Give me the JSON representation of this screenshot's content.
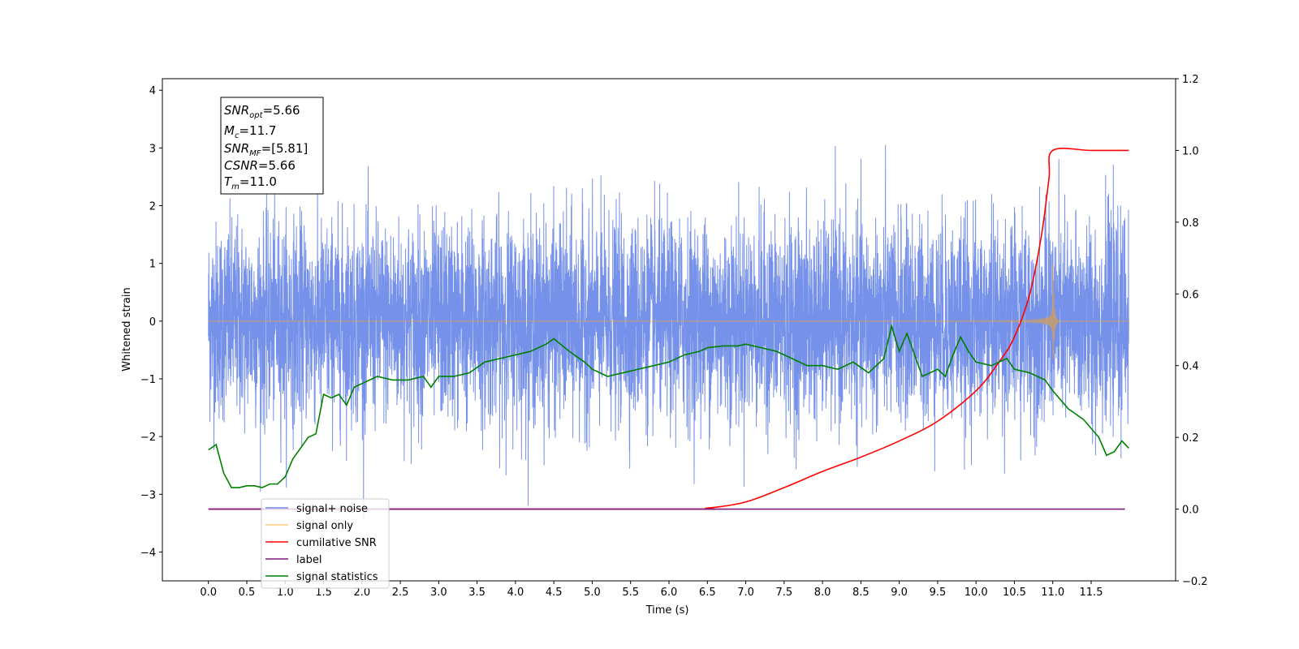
{
  "chart_data": {
    "type": "line",
    "title": "",
    "xlabel": "Time (s)",
    "ylabel": "Whitened strain",
    "xlim": [
      -0.6,
      12.6
    ],
    "ylim": [
      -4.5,
      4.2
    ],
    "y2lim": [
      -0.2,
      1.2
    ],
    "xticks": [
      "0.0",
      "0.5",
      "1.0",
      "1.5",
      "2.0",
      "2.5",
      "3.0",
      "3.5",
      "4.0",
      "4.5",
      "5.0",
      "5.5",
      "6.0",
      "6.5",
      "7.0",
      "7.5",
      "8.0",
      "8.5",
      "9.0",
      "9.5",
      "10.0",
      "10.5",
      "11.0",
      "11.5"
    ],
    "yticks": [
      "4",
      "3",
      "2",
      "1",
      "0",
      "−1",
      "−2",
      "−3",
      "−4"
    ],
    "y2ticks": [
      "1.2",
      "1.0",
      "0.8",
      "0.6",
      "0.4",
      "0.2",
      "0.0",
      "−0.2"
    ],
    "grid": false,
    "legend_position": "lower-left",
    "annotation": {
      "snr_opt": {
        "base": "SNR",
        "sub": "opt",
        "value": "=5.66"
      },
      "mc": {
        "base": "M",
        "sub": "c",
        "value": "=11.7"
      },
      "snr_mf": {
        "base": "SNR",
        "sub": "MF",
        "value": "=[5.81]"
      },
      "csnr": {
        "base": "CSNR",
        "sub": "",
        "value": "=5.66"
      },
      "tm": {
        "base": "T",
        "sub": "m",
        "value": "=11.0"
      }
    },
    "series": [
      {
        "name": "signal+ noise",
        "color": "#6f8be8",
        "axis": "left",
        "noise_std": 0.85,
        "range": [
          -3.6,
          3.8
        ]
      },
      {
        "name": "signal only",
        "color": "#f5a623",
        "axis": "left",
        "merger_time": 11.0,
        "peak_amplitude": 1.0
      },
      {
        "name": "cumilative SNR",
        "color": "#ff0000",
        "axis": "right",
        "x": [
          0,
          6.0,
          6.5,
          7.0,
          7.5,
          8.0,
          8.5,
          9.0,
          9.5,
          10.0,
          10.3,
          10.5,
          10.7,
          10.85,
          10.95,
          11.0,
          11.5,
          11.99
        ],
        "y": [
          0,
          0,
          0.003,
          0.02,
          0.06,
          0.105,
          0.145,
          0.19,
          0.245,
          0.33,
          0.41,
          0.48,
          0.6,
          0.76,
          0.92,
          1.0,
          1.0,
          1.0
        ]
      },
      {
        "name": "label",
        "color": "#7b1a7b",
        "axis": "right",
        "x": [
          0,
          11.94
        ],
        "y": [
          0,
          0
        ]
      },
      {
        "name": "signal statistics",
        "color": "#008000",
        "axis": "right",
        "x": [
          0,
          0.1,
          0.2,
          0.3,
          0.4,
          0.5,
          0.6,
          0.7,
          0.8,
          0.9,
          1.0,
          1.1,
          1.2,
          1.3,
          1.4,
          1.5,
          1.6,
          1.7,
          1.8,
          1.9,
          2.0,
          2.2,
          2.4,
          2.6,
          2.8,
          2.9,
          3.0,
          3.2,
          3.4,
          3.6,
          3.8,
          4.0,
          4.2,
          4.4,
          4.5,
          4.7,
          4.9,
          5.0,
          5.2,
          5.4,
          5.6,
          5.8,
          6.0,
          6.2,
          6.4,
          6.5,
          6.7,
          6.9,
          7.0,
          7.2,
          7.4,
          7.6,
          7.8,
          8.0,
          8.2,
          8.4,
          8.6,
          8.8,
          8.9,
          9.0,
          9.1,
          9.3,
          9.5,
          9.6,
          9.7,
          9.8,
          9.9,
          10.0,
          10.2,
          10.4,
          10.5,
          10.7,
          10.8,
          10.9,
          11.0,
          11.2,
          11.4,
          11.6,
          11.7,
          11.8,
          11.9,
          11.99
        ],
        "y": [
          0.165,
          0.18,
          0.1,
          0.06,
          0.06,
          0.065,
          0.065,
          0.06,
          0.07,
          0.07,
          0.09,
          0.14,
          0.17,
          0.2,
          0.21,
          0.32,
          0.31,
          0.32,
          0.29,
          0.34,
          0.35,
          0.37,
          0.36,
          0.36,
          0.37,
          0.34,
          0.37,
          0.37,
          0.38,
          0.41,
          0.42,
          0.43,
          0.44,
          0.46,
          0.475,
          0.44,
          0.41,
          0.39,
          0.37,
          0.38,
          0.39,
          0.4,
          0.41,
          0.43,
          0.44,
          0.45,
          0.455,
          0.455,
          0.46,
          0.45,
          0.44,
          0.42,
          0.4,
          0.4,
          0.39,
          0.41,
          0.38,
          0.42,
          0.51,
          0.44,
          0.49,
          0.37,
          0.39,
          0.37,
          0.43,
          0.48,
          0.44,
          0.41,
          0.4,
          0.42,
          0.39,
          0.38,
          0.37,
          0.36,
          0.33,
          0.28,
          0.25,
          0.2,
          0.15,
          0.16,
          0.19,
          0.17
        ]
      }
    ]
  }
}
